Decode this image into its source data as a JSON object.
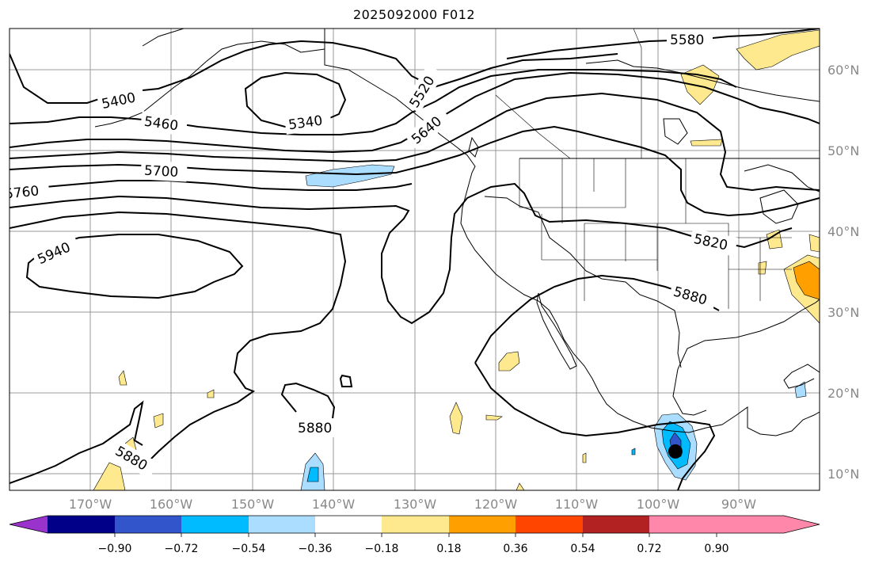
{
  "title": "2025092000 F012",
  "map": {
    "projection": "PlateCarree",
    "extent": {
      "lon_min": -180,
      "lon_max": -80,
      "lat_min": 8,
      "lat_max": 65
    },
    "lat_labels": [
      {
        "lat": 60,
        "text": "60°N"
      },
      {
        "lat": 50,
        "text": "50°N"
      },
      {
        "lat": 40,
        "text": "40°N"
      },
      {
        "lat": 30,
        "text": "30°N"
      },
      {
        "lat": 20,
        "text": "20°N"
      },
      {
        "lat": 10,
        "text": "10°N"
      }
    ],
    "lon_labels": [
      {
        "lon": -170,
        "text": "170°W"
      },
      {
        "lon": -160,
        "text": "160°W"
      },
      {
        "lon": -150,
        "text": "150°W"
      },
      {
        "lon": -140,
        "text": "140°W"
      },
      {
        "lon": -130,
        "text": "130°W"
      },
      {
        "lon": -120,
        "text": "120°W"
      },
      {
        "lon": -110,
        "text": "110°W"
      },
      {
        "lon": -100,
        "text": "100°W"
      },
      {
        "lon": -90,
        "text": "90°W"
      }
    ],
    "contour_labels": [
      "5580",
      "5520",
      "5400",
      "5340",
      "5460",
      "5640",
      "5700",
      "5760",
      "5820",
      "5880",
      "5940",
      "5880",
      "5880"
    ],
    "marker": {
      "name": "storm-center",
      "lon": -97.8,
      "lat": 12.8
    }
  },
  "colorbar": {
    "colors": [
      "#9933cc",
      "#000088",
      "#3355cc",
      "#00bbff",
      "#aaddff",
      "#ffffff",
      "#ffe98f",
      "#ff9f00",
      "#ff4500",
      "#b22222",
      "#ff88aa"
    ],
    "ticks": [
      "−0.90",
      "−0.72",
      "−0.54",
      "−0.36",
      "−0.18",
      "0.18",
      "0.36",
      "0.54",
      "0.72",
      "0.90"
    ]
  }
}
